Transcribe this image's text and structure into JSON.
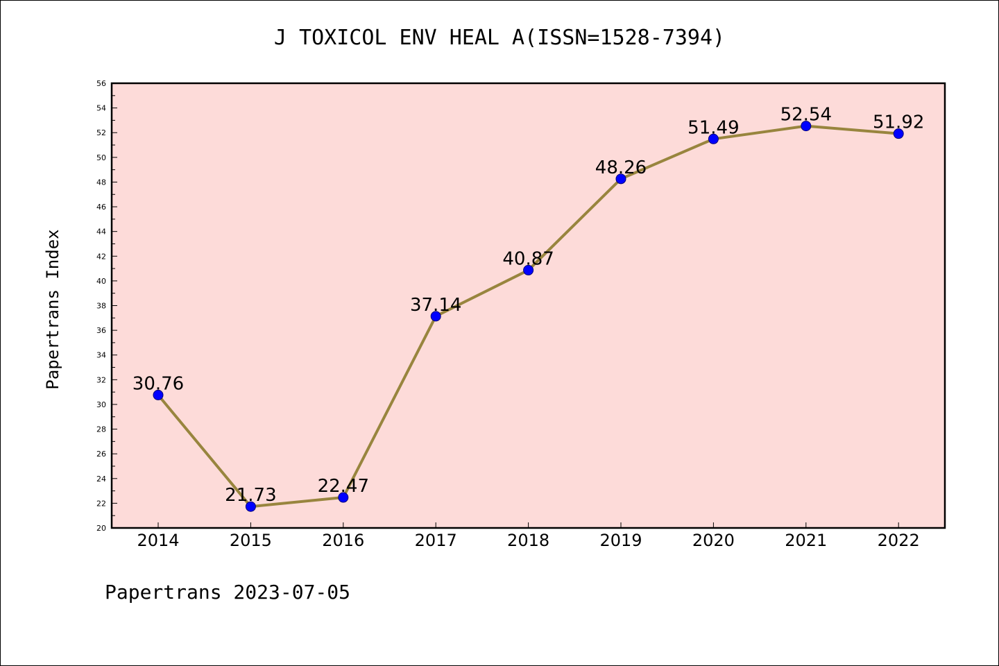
{
  "chart_data": {
    "type": "line",
    "title": "J TOXICOL ENV HEAL A(ISSN=1528-7394)",
    "xlabel": "",
    "ylabel": "Papertrans Index",
    "categories": [
      "2014",
      "2015",
      "2016",
      "2017",
      "2018",
      "2019",
      "2020",
      "2021",
      "2022"
    ],
    "values": [
      30.76,
      21.73,
      22.47,
      37.14,
      40.87,
      48.26,
      51.49,
      52.54,
      51.92
    ],
    "data_labels": [
      "30.76",
      "21.73",
      "22.47",
      "37.14",
      "40.87",
      "48.26",
      "51.49",
      "52.54",
      "51.92"
    ],
    "ylim": [
      20,
      56
    ],
    "yticks": [
      "20",
      "22",
      "24",
      "26",
      "28",
      "30",
      "32",
      "34",
      "36",
      "38",
      "40",
      "42",
      "44",
      "46",
      "48",
      "50",
      "52",
      "54",
      "56"
    ],
    "grid": false,
    "colors": {
      "plot_background": "#fddbd9",
      "line": "#98853e",
      "marker": "#0000ff"
    }
  },
  "footer": "Papertrans 2023-07-05"
}
